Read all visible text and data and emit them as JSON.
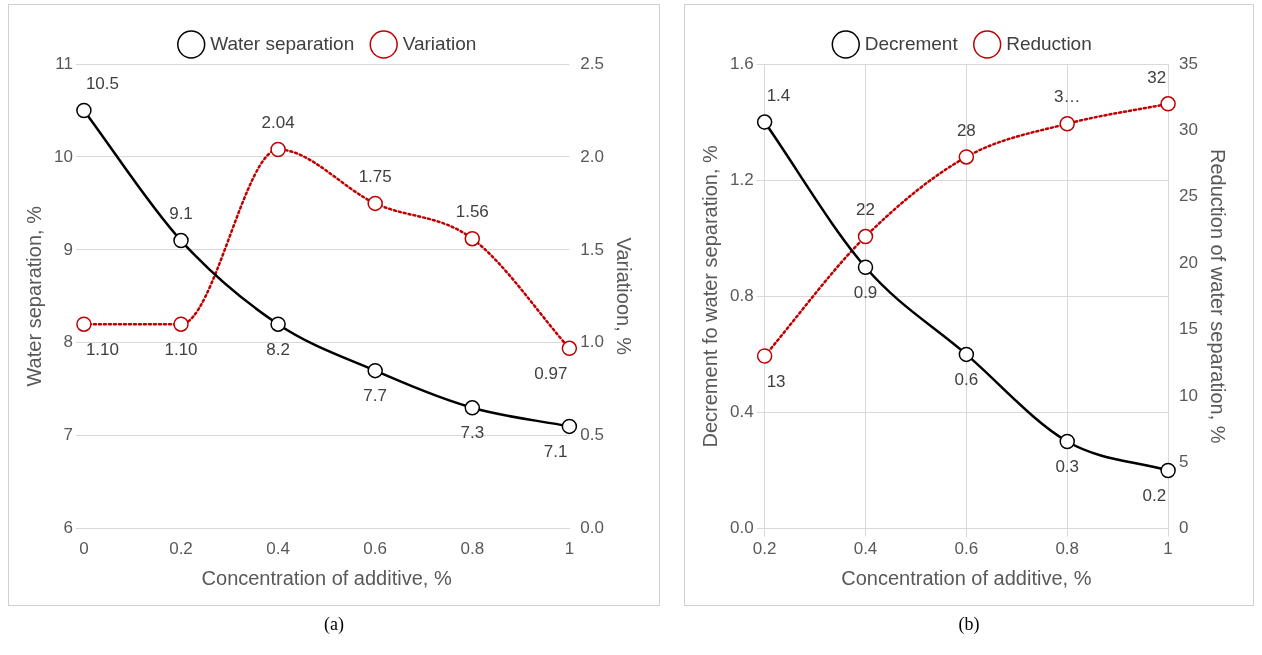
{
  "chart_data": [
    {
      "type": "line",
      "xlabel": "Concentration of additive, %",
      "ylabel": "Water separation, %",
      "y2label": "Variatioon, %",
      "categories": [
        "0",
        "0.2",
        "0.4",
        "0.6",
        "0.8",
        "1"
      ],
      "series": [
        {
          "name": "Water separation",
          "color": "#000000",
          "values": [
            10.5,
            9.1,
            8.2,
            7.7,
            7.3,
            7.1
          ],
          "value_labels": [
            "10.5",
            "9.1",
            "8.2",
            "7.7",
            "7.3",
            "7.1"
          ],
          "line_style": "solid",
          "marker": "circle"
        },
        {
          "name": "Variation",
          "color": "#c00000",
          "axis": "y2",
          "values": [
            1.1,
            1.1,
            2.04,
            1.75,
            1.56,
            0.97
          ],
          "value_labels": [
            "1.10",
            "1.10",
            "2.04",
            "1.75",
            "1.56",
            "0.97"
          ],
          "line_style": "dotted",
          "marker": "circle"
        }
      ],
      "ylim": [
        6,
        11
      ],
      "yticks": [
        6,
        7,
        8,
        9,
        10,
        11
      ],
      "y2lim": [
        0,
        2.5
      ],
      "y2ticks": [
        {
          "value": 0,
          "label": "0.0"
        },
        {
          "value": 0.5,
          "label": "0.5"
        },
        {
          "value": 1,
          "label": "1.0"
        },
        {
          "value": 1.5,
          "label": "1.5"
        },
        {
          "value": 2,
          "label": "2.0"
        },
        {
          "value": 2.5,
          "label": "2.5"
        }
      ],
      "grid": "y",
      "legend": "top",
      "annotations": [
        "(a)"
      ]
    },
    {
      "type": "line",
      "xlabel": "Concentration of additive, %",
      "ylabel": "Decrement fo water separation, %",
      "y2label": "Reduction of water separation, %",
      "categories": [
        "0.2",
        "0.4",
        "0.6",
        "0.8",
        "1"
      ],
      "series": [
        {
          "name": "Decrement",
          "color": "#000000",
          "values": [
            1.4,
            0.9,
            0.6,
            0.3,
            0.2
          ],
          "value_labels": [
            "1.4",
            "0.9",
            "0.6",
            "0.3",
            "0.2"
          ],
          "line_style": "solid",
          "marker": "circle"
        },
        {
          "name": "Reduction",
          "color": "#c00000",
          "axis": "y2",
          "values": [
            13,
            22,
            28,
            30.5,
            32
          ],
          "value_labels": [
            "13",
            "22",
            "28",
            "3…",
            "32"
          ],
          "line_style": "dotted",
          "marker": "circle"
        }
      ],
      "ylim": [
        0,
        1.6
      ],
      "yticks": [
        {
          "value": 0,
          "label": "0.0"
        },
        {
          "value": 0.4,
          "label": "0.4"
        },
        {
          "value": 0.8,
          "label": "0.8"
        },
        {
          "value": 1.2,
          "label": "1.2"
        },
        {
          "value": 1.6,
          "label": "1.6"
        }
      ],
      "y2lim": [
        0,
        35
      ],
      "y2ticks": [
        0,
        5,
        10,
        15,
        20,
        25,
        30,
        35
      ],
      "grid": true,
      "legend": "top",
      "annotations": [
        "(b)"
      ]
    }
  ]
}
